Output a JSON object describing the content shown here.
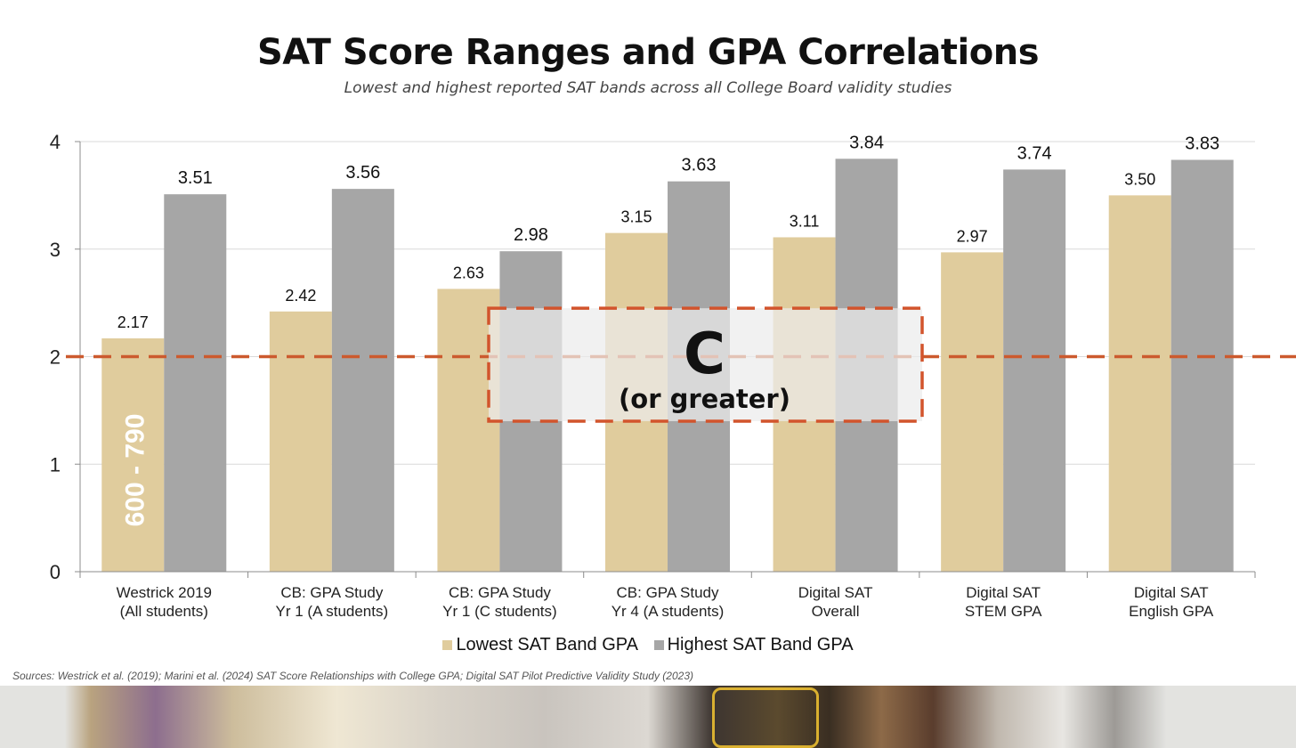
{
  "title": "SAT Score Ranges and GPA Correlations",
  "subtitle": "Lowest and highest reported SAT bands across all College Board validity studies",
  "sources": "Sources: Westrick et al. (2019); Marini et al. (2024) SAT Score Relationships with College GPA; Digital SAT Pilot Predictive Validity Study (2023)",
  "chart_data": {
    "type": "bar",
    "categories": [
      [
        "Westrick 2019",
        "(All students)"
      ],
      [
        "CB: GPA Study",
        "Yr 1 (A students)"
      ],
      [
        "CB: GPA Study",
        "Yr 1 (C students)"
      ],
      [
        "CB: GPA Study",
        "Yr 4 (A students)"
      ],
      [
        "Digital SAT",
        "Overall"
      ],
      [
        "Digital SAT",
        "STEM GPA"
      ],
      [
        "Digital SAT",
        "English GPA"
      ]
    ],
    "series": [
      {
        "name": "Lowest SAT Band GPA",
        "color": "#e0cc9d",
        "values": [
          2.17,
          2.42,
          2.63,
          3.15,
          3.11,
          2.97,
          3.5
        ],
        "labels": [
          "2.17",
          "2.42",
          "2.63",
          "3.15",
          "3.11",
          "2.97",
          "3.50"
        ]
      },
      {
        "name": "Highest SAT Band GPA",
        "color": "#a6a6a6",
        "values": [
          3.51,
          3.56,
          2.98,
          3.63,
          3.84,
          3.74,
          3.83
        ],
        "labels": [
          "3.51",
          "3.56",
          "2.98",
          "3.63",
          "3.84",
          "3.74",
          "3.83"
        ]
      }
    ],
    "ylim": [
      0,
      4
    ],
    "yticks": [
      "0",
      "1",
      "2",
      "3",
      "4"
    ],
    "grid": true,
    "legend_position": "bottom",
    "reference_line": {
      "value": 2.0,
      "color": "#cc5a2e",
      "style": "dashed"
    },
    "annotations": {
      "bar_text": "600 - 790",
      "callout_big": "C",
      "callout_small": "(or greater)",
      "callout_range": [
        1.4,
        2.45
      ],
      "callout_color": "#d2542c"
    }
  }
}
